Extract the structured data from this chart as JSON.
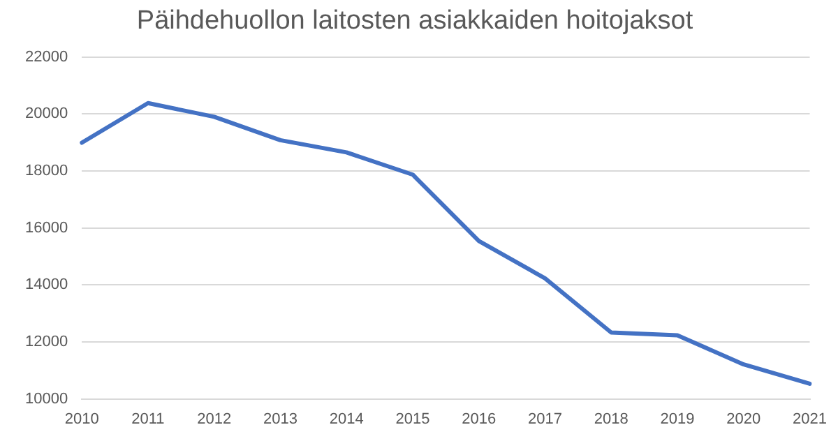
{
  "chart_data": {
    "type": "line",
    "title": "Päihdehuollon laitosten asiakkaiden hoitojaksot",
    "categories": [
      "2010",
      "2011",
      "2012",
      "2013",
      "2014",
      "2015",
      "2016",
      "2017",
      "2018",
      "2019",
      "2020",
      "2021"
    ],
    "series": [
      {
        "color": "#4472c4",
        "values": [
          18990,
          20380,
          19900,
          19080,
          18650,
          17870,
          15540,
          14230,
          12330,
          12230,
          11210,
          10530
        ]
      }
    ],
    "ylim": [
      10000,
      22000
    ],
    "yticks": [
      10000,
      12000,
      14000,
      16000,
      18000,
      20000,
      22000
    ],
    "grid": "y",
    "legend": false,
    "marker": "none",
    "line_style": "solid"
  }
}
